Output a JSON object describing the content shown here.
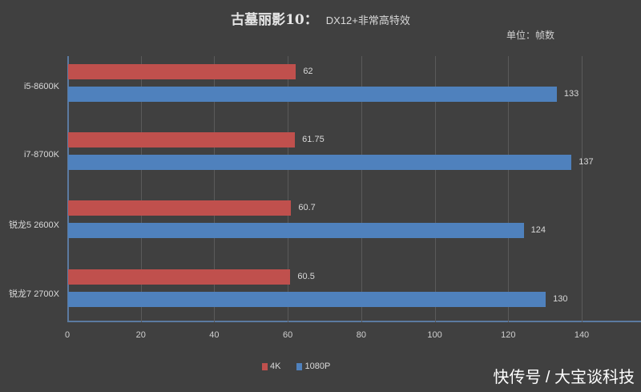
{
  "title": {
    "main": "古墓丽影10：",
    "sub": "DX12+非常高特效"
  },
  "unit_label": "单位：帧数",
  "legend": [
    {
      "label": "4K",
      "color": "#c0504d"
    },
    {
      "label": "1080P",
      "color": "#4f81bd"
    }
  ],
  "ticks": [
    "0",
    "20",
    "40",
    "60",
    "80",
    "100",
    "120",
    "140"
  ],
  "watermark": "快传号 / 大宝谈科技",
  "chart_data": {
    "type": "bar",
    "orientation": "horizontal",
    "title": "古墓丽影10： DX12+非常高特效",
    "unit": "单位：帧数",
    "categories": [
      "i5-8600K",
      "i7-8700K",
      "锐龙5 2600X",
      "锐龙7 2700X"
    ],
    "series": [
      {
        "name": "4K",
        "color": "#c0504d",
        "values": [
          62,
          61.75,
          60.7,
          60.5
        ]
      },
      {
        "name": "1080P",
        "color": "#4f81bd",
        "values": [
          133,
          137,
          124,
          130
        ]
      }
    ],
    "labels": {
      "4K": [
        "62",
        "61.75",
        "60.7",
        "60.5"
      ],
      "1080P": [
        "133",
        "137",
        "124",
        "130"
      ]
    },
    "xlabel": "",
    "ylabel": "",
    "xlim": [
      0,
      155
    ],
    "xticks": [
      0,
      20,
      40,
      60,
      80,
      100,
      120,
      140
    ],
    "grid": true,
    "legend_position": "bottom"
  }
}
